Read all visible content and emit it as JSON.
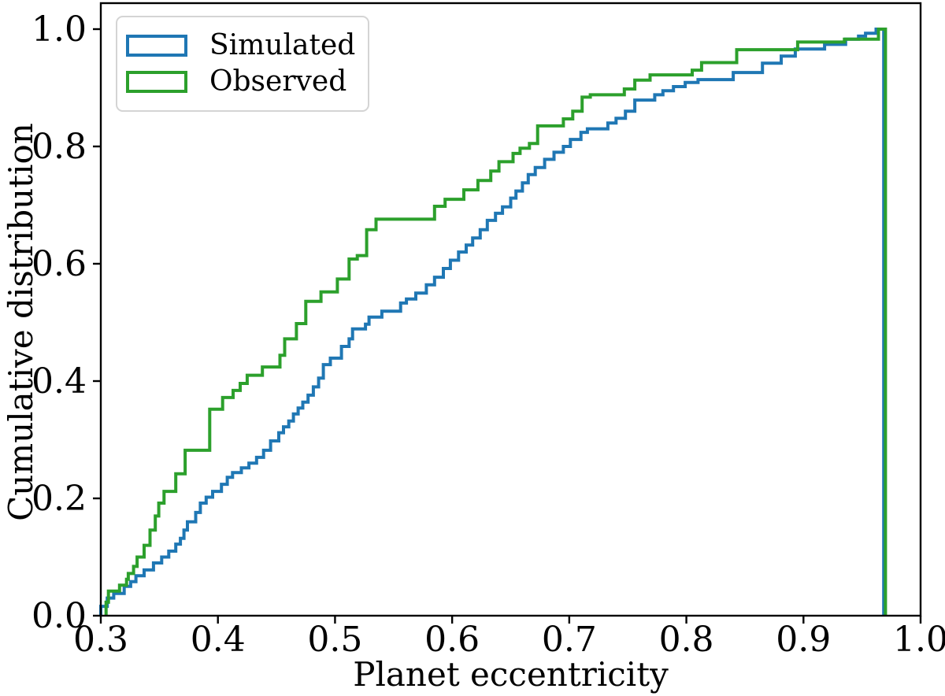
{
  "figure": {
    "background": "#ffffff",
    "legend": {
      "position": "upper left",
      "items": [
        {
          "label": "Simulated",
          "color": "#1f77b4"
        },
        {
          "label": "Observed",
          "color": "#2ca02c"
        }
      ]
    }
  },
  "chart_data": {
    "type": "line",
    "subtype": "cumulative_step_histogram",
    "title": "",
    "xlabel": "Planet eccentricity",
    "ylabel": "Cumulative distribution",
    "xlim": [
      0.3,
      1.0
    ],
    "ylim": [
      0.0,
      1.045
    ],
    "grid": false,
    "legend_position": "upper left",
    "axis_color": "#000000",
    "tick_direction": "out",
    "x_ticks": {
      "values": [
        0.3,
        0.4,
        0.5,
        0.6,
        0.7,
        0.8,
        0.9,
        1.0
      ],
      "labels": [
        "0.3",
        "0.4",
        "0.5",
        "0.6",
        "0.7",
        "0.8",
        "0.9",
        "1.0"
      ]
    },
    "y_ticks": {
      "values": [
        0.0,
        0.2,
        0.4,
        0.6,
        0.8,
        1.0
      ],
      "labels": [
        "0.0",
        "0.2",
        "0.4",
        "0.6",
        "0.8",
        "1.0"
      ]
    },
    "series": [
      {
        "name": "Simulated",
        "color": "#1f77b4",
        "line_width": 4,
        "close_x": 0.9685,
        "steps": [
          [
            0.3,
            0.016
          ],
          [
            0.3055,
            0.03
          ],
          [
            0.311,
            0.038
          ],
          [
            0.32,
            0.05
          ],
          [
            0.3255,
            0.058
          ],
          [
            0.33,
            0.068
          ],
          [
            0.337,
            0.078
          ],
          [
            0.345,
            0.09
          ],
          [
            0.352,
            0.1
          ],
          [
            0.358,
            0.11
          ],
          [
            0.364,
            0.122
          ],
          [
            0.368,
            0.132
          ],
          [
            0.371,
            0.146
          ],
          [
            0.374,
            0.16
          ],
          [
            0.381,
            0.176
          ],
          [
            0.385,
            0.192
          ],
          [
            0.39,
            0.202
          ],
          [
            0.3955,
            0.212
          ],
          [
            0.403,
            0.224
          ],
          [
            0.408,
            0.236
          ],
          [
            0.4125,
            0.244
          ],
          [
            0.42,
            0.252
          ],
          [
            0.4265,
            0.26
          ],
          [
            0.433,
            0.27
          ],
          [
            0.439,
            0.282
          ],
          [
            0.445,
            0.298
          ],
          [
            0.452,
            0.312
          ],
          [
            0.456,
            0.322
          ],
          [
            0.4605,
            0.332
          ],
          [
            0.4645,
            0.344
          ],
          [
            0.4685,
            0.354
          ],
          [
            0.4725,
            0.364
          ],
          [
            0.477,
            0.376
          ],
          [
            0.4815,
            0.39
          ],
          [
            0.486,
            0.405
          ],
          [
            0.49,
            0.428
          ],
          [
            0.496,
            0.439
          ],
          [
            0.5055,
            0.459
          ],
          [
            0.512,
            0.472
          ],
          [
            0.515,
            0.489
          ],
          [
            0.526,
            0.497
          ],
          [
            0.529,
            0.509
          ],
          [
            0.54,
            0.519
          ],
          [
            0.556,
            0.533
          ],
          [
            0.561,
            0.54
          ],
          [
            0.569,
            0.55
          ],
          [
            0.578,
            0.564
          ],
          [
            0.585,
            0.577
          ],
          [
            0.5925,
            0.592
          ],
          [
            0.5985,
            0.606
          ],
          [
            0.6055,
            0.62
          ],
          [
            0.612,
            0.632
          ],
          [
            0.6175,
            0.644
          ],
          [
            0.624,
            0.658
          ],
          [
            0.63,
            0.674
          ],
          [
            0.637,
            0.686
          ],
          [
            0.643,
            0.697
          ],
          [
            0.65,
            0.712
          ],
          [
            0.6545,
            0.724
          ],
          [
            0.66,
            0.738
          ],
          [
            0.665,
            0.752
          ],
          [
            0.671,
            0.764
          ],
          [
            0.679,
            0.778
          ],
          [
            0.687,
            0.79
          ],
          [
            0.695,
            0.8
          ],
          [
            0.701,
            0.812
          ],
          [
            0.71,
            0.824
          ],
          [
            0.7155,
            0.83
          ],
          [
            0.733,
            0.84
          ],
          [
            0.74,
            0.848
          ],
          [
            0.748,
            0.86
          ],
          [
            0.756,
            0.879
          ],
          [
            0.773,
            0.888
          ],
          [
            0.78,
            0.895
          ],
          [
            0.789,
            0.902
          ],
          [
            0.799,
            0.909
          ],
          [
            0.81,
            0.914
          ],
          [
            0.84,
            0.926
          ],
          [
            0.865,
            0.942
          ],
          [
            0.881,
            0.954
          ],
          [
            0.893,
            0.966
          ],
          [
            0.918,
            0.974
          ],
          [
            0.936,
            0.983
          ],
          [
            0.947,
            0.988
          ],
          [
            0.953,
            0.993
          ],
          [
            0.962,
            1.0
          ]
        ]
      },
      {
        "name": "Observed",
        "color": "#2ca02c",
        "line_width": 4,
        "close_x": 0.97,
        "steps": [
          [
            0.3045,
            0.023
          ],
          [
            0.3065,
            0.042
          ],
          [
            0.316,
            0.052
          ],
          [
            0.322,
            0.062
          ],
          [
            0.3235,
            0.072
          ],
          [
            0.328,
            0.084
          ],
          [
            0.331,
            0.1
          ],
          [
            0.337,
            0.12
          ],
          [
            0.342,
            0.146
          ],
          [
            0.3465,
            0.17
          ],
          [
            0.3495,
            0.192
          ],
          [
            0.354,
            0.212
          ],
          [
            0.364,
            0.242
          ],
          [
            0.372,
            0.282
          ],
          [
            0.393,
            0.352
          ],
          [
            0.404,
            0.372
          ],
          [
            0.413,
            0.384
          ],
          [
            0.419,
            0.396
          ],
          [
            0.425,
            0.41
          ],
          [
            0.438,
            0.424
          ],
          [
            0.453,
            0.444
          ],
          [
            0.457,
            0.472
          ],
          [
            0.467,
            0.498
          ],
          [
            0.475,
            0.536
          ],
          [
            0.488,
            0.552
          ],
          [
            0.502,
            0.574
          ],
          [
            0.512,
            0.608
          ],
          [
            0.519,
            0.614
          ],
          [
            0.527,
            0.658
          ],
          [
            0.535,
            0.676
          ],
          [
            0.585,
            0.698
          ],
          [
            0.594,
            0.71
          ],
          [
            0.61,
            0.726
          ],
          [
            0.622,
            0.742
          ],
          [
            0.633,
            0.758
          ],
          [
            0.64,
            0.774
          ],
          [
            0.652,
            0.788
          ],
          [
            0.658,
            0.797
          ],
          [
            0.666,
            0.805
          ],
          [
            0.673,
            0.835
          ],
          [
            0.695,
            0.847
          ],
          [
            0.703,
            0.86
          ],
          [
            0.711,
            0.884
          ],
          [
            0.718,
            0.888
          ],
          [
            0.747,
            0.898
          ],
          [
            0.756,
            0.913
          ],
          [
            0.769,
            0.922
          ],
          [
            0.805,
            0.93
          ],
          [
            0.813,
            0.943
          ],
          [
            0.843,
            0.965
          ],
          [
            0.895,
            0.978
          ],
          [
            0.935,
            0.983
          ],
          [
            0.964,
            1.0
          ]
        ]
      }
    ]
  }
}
